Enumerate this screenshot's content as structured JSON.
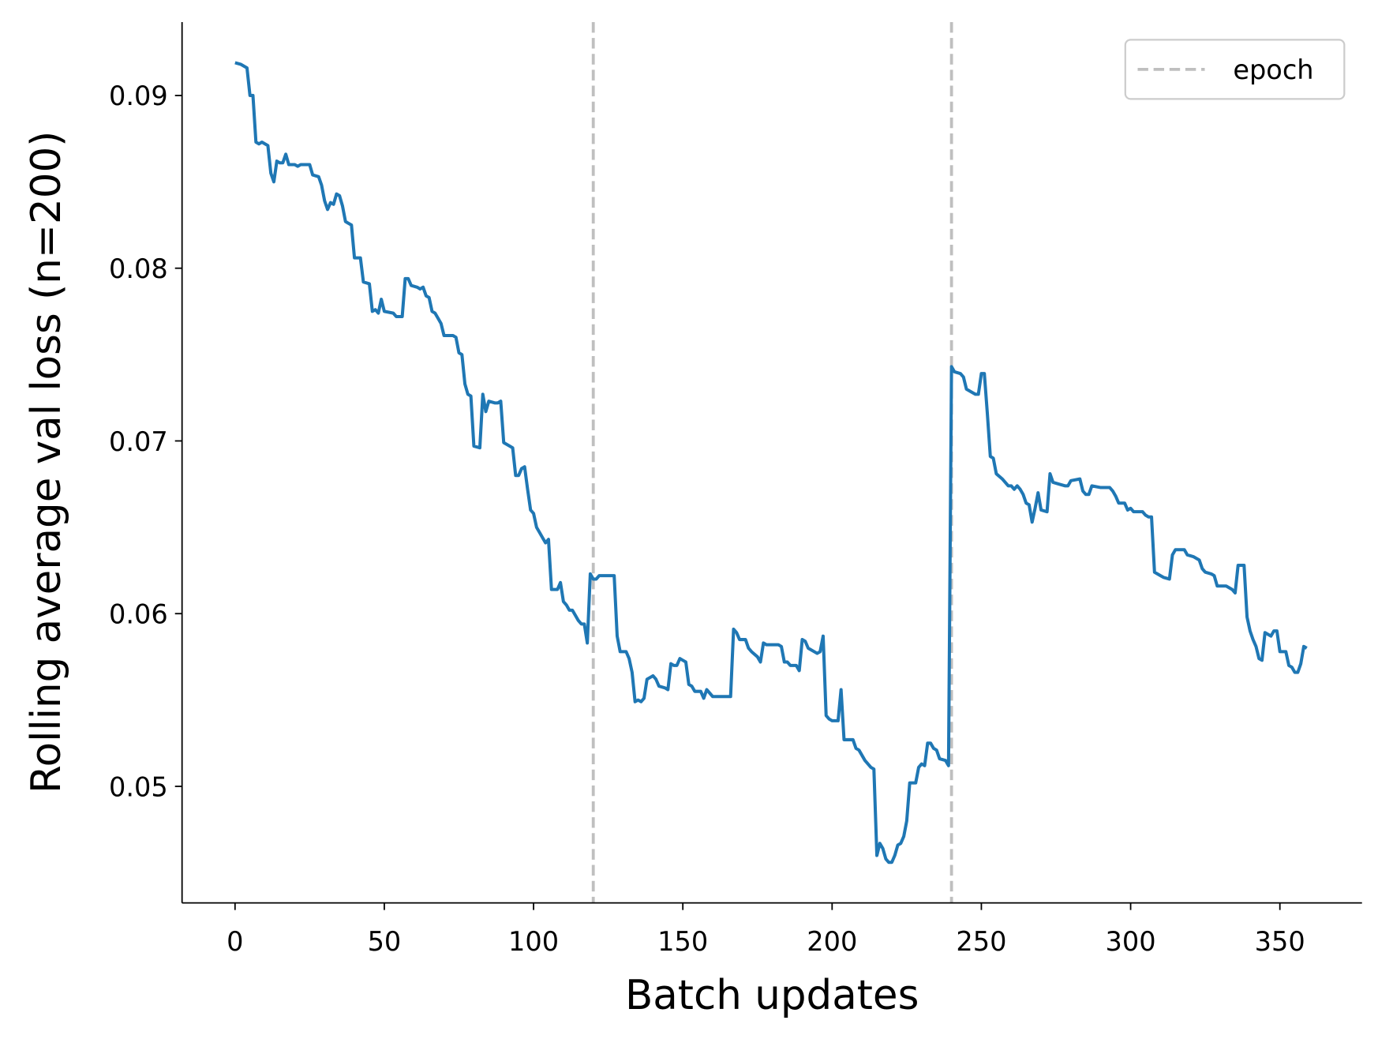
{
  "chart_data": {
    "type": "line",
    "xlabel": "Batch updates",
    "ylabel": "Rolling average val loss (n=200)",
    "color": "#1f77b4",
    "x": [
      0,
      2,
      4,
      5,
      6,
      7,
      8,
      9,
      11,
      12,
      13,
      14,
      15,
      16,
      17,
      18,
      20,
      21,
      22,
      25,
      26,
      28,
      29,
      30,
      31,
      32,
      33,
      34,
      35,
      36,
      37,
      38,
      39,
      40,
      42,
      43,
      45,
      46,
      47,
      48,
      49,
      50,
      53,
      54,
      56,
      57,
      58,
      59,
      61,
      62,
      63,
      64,
      65,
      66,
      67,
      68,
      69,
      70,
      73,
      74,
      75,
      76,
      77,
      78,
      79,
      80,
      82,
      83,
      84,
      85,
      87,
      88,
      89,
      90,
      92,
      93,
      94,
      95,
      96,
      97,
      98,
      99,
      100,
      101,
      102,
      103,
      104,
      105,
      106,
      108,
      109,
      110,
      111,
      112,
      113,
      114,
      115,
      116,
      117,
      118,
      119,
      120,
      121,
      122,
      127,
      128,
      129,
      131,
      132,
      133,
      134,
      135,
      136,
      137,
      138,
      139,
      140,
      141,
      142,
      144,
      145,
      146,
      147,
      148,
      149,
      150,
      151,
      152,
      153,
      154,
      155,
      156,
      157,
      158,
      159,
      160,
      166,
      167,
      168,
      169,
      171,
      172,
      173,
      175,
      176,
      177,
      178,
      180,
      182,
      183,
      184,
      185,
      186,
      188,
      189,
      190,
      191,
      192,
      195,
      196,
      197,
      198,
      199,
      200,
      202,
      203,
      204,
      207,
      208,
      209,
      211,
      213,
      214,
      215,
      216,
      217,
      218,
      219,
      220,
      221,
      222,
      223,
      224,
      225,
      226,
      228,
      229,
      230,
      231,
      232,
      233,
      234,
      235,
      236,
      238,
      239,
      240,
      241,
      243,
      244,
      245,
      247,
      248,
      249,
      250,
      251,
      252,
      253,
      254,
      255,
      257,
      258,
      259,
      260,
      261,
      262,
      263,
      264,
      265,
      266,
      267,
      268,
      269,
      270,
      272,
      273,
      274,
      276,
      278,
      279,
      280,
      283,
      284,
      285,
      286,
      287,
      290,
      293,
      294,
      295,
      296,
      298,
      299,
      300,
      301,
      304,
      305,
      306,
      307,
      308,
      310,
      311,
      313,
      314,
      315,
      318,
      319,
      321,
      323,
      324,
      325,
      327,
      328,
      329,
      332,
      334,
      335,
      336,
      338,
      339,
      340,
      341,
      342,
      343,
      344,
      345,
      347,
      348,
      349,
      350,
      352,
      353,
      354,
      355,
      356,
      357,
      358,
      359
    ],
    "values": [
      0.0919,
      0.0918,
      0.0916,
      0.09,
      0.09,
      0.0873,
      0.0872,
      0.0873,
      0.0871,
      0.0855,
      0.085,
      0.0862,
      0.0861,
      0.0861,
      0.0866,
      0.086,
      0.086,
      0.0859,
      0.086,
      0.086,
      0.0854,
      0.0853,
      0.0848,
      0.0839,
      0.0834,
      0.0838,
      0.0837,
      0.0843,
      0.0842,
      0.0836,
      0.0827,
      0.0826,
      0.0825,
      0.0806,
      0.0806,
      0.0792,
      0.0791,
      0.0775,
      0.0776,
      0.0774,
      0.0782,
      0.0775,
      0.0774,
      0.0772,
      0.0772,
      0.0794,
      0.0794,
      0.079,
      0.0789,
      0.0788,
      0.0789,
      0.0784,
      0.0783,
      0.0775,
      0.0774,
      0.0771,
      0.0768,
      0.0761,
      0.0761,
      0.076,
      0.0751,
      0.075,
      0.0733,
      0.0727,
      0.0726,
      0.0697,
      0.0696,
      0.0727,
      0.0717,
      0.0723,
      0.0722,
      0.0722,
      0.0723,
      0.0699,
      0.0697,
      0.0696,
      0.068,
      0.068,
      0.0684,
      0.0685,
      0.0672,
      0.066,
      0.0658,
      0.065,
      0.0647,
      0.0644,
      0.0641,
      0.0643,
      0.0614,
      0.0614,
      0.0618,
      0.0607,
      0.0605,
      0.0602,
      0.0602,
      0.0599,
      0.0596,
      0.0594,
      0.0594,
      0.0583,
      0.0623,
      0.062,
      0.062,
      0.0622,
      0.0622,
      0.0587,
      0.0578,
      0.0578,
      0.0574,
      0.0566,
      0.0549,
      0.055,
      0.0549,
      0.0551,
      0.0562,
      0.0563,
      0.0564,
      0.0562,
      0.0558,
      0.0557,
      0.0556,
      0.0571,
      0.057,
      0.057,
      0.0574,
      0.0573,
      0.0572,
      0.0559,
      0.0558,
      0.0555,
      0.0555,
      0.0555,
      0.0551,
      0.0556,
      0.0554,
      0.0552,
      0.0552,
      0.0591,
      0.0589,
      0.0585,
      0.0585,
      0.058,
      0.0578,
      0.0575,
      0.0572,
      0.0583,
      0.0582,
      0.0582,
      0.0582,
      0.0581,
      0.0572,
      0.0572,
      0.057,
      0.057,
      0.0567,
      0.0585,
      0.0584,
      0.058,
      0.0577,
      0.0578,
      0.0587,
      0.0541,
      0.0539,
      0.0538,
      0.0538,
      0.0556,
      0.0527,
      0.0527,
      0.0522,
      0.0521,
      0.0515,
      0.0511,
      0.051,
      0.046,
      0.0467,
      0.0464,
      0.0458,
      0.0456,
      0.0456,
      0.046,
      0.0466,
      0.0467,
      0.0471,
      0.048,
      0.0502,
      0.0502,
      0.0511,
      0.0513,
      0.0512,
      0.0525,
      0.0525,
      0.0522,
      0.0521,
      0.0516,
      0.0515,
      0.0512,
      0.0743,
      0.074,
      0.0739,
      0.0737,
      0.073,
      0.0728,
      0.0727,
      0.0727,
      0.0739,
      0.0739,
      0.0716,
      0.0691,
      0.069,
      0.0681,
      0.0678,
      0.0676,
      0.0674,
      0.0674,
      0.0672,
      0.0674,
      0.0672,
      0.0669,
      0.0664,
      0.0663,
      0.0653,
      0.0661,
      0.067,
      0.066,
      0.0659,
      0.0681,
      0.0676,
      0.0675,
      0.0674,
      0.0674,
      0.0677,
      0.0678,
      0.0671,
      0.0669,
      0.0669,
      0.0674,
      0.0673,
      0.0673,
      0.0671,
      0.0668,
      0.0664,
      0.0664,
      0.066,
      0.0661,
      0.0659,
      0.0659,
      0.0657,
      0.0656,
      0.0656,
      0.0624,
      0.0622,
      0.0621,
      0.062,
      0.0634,
      0.0637,
      0.0637,
      0.0634,
      0.0633,
      0.0631,
      0.0626,
      0.0624,
      0.0623,
      0.0622,
      0.0616,
      0.0616,
      0.0614,
      0.0612,
      0.0628,
      0.0628,
      0.0598,
      0.059,
      0.0585,
      0.0581,
      0.0574,
      0.0573,
      0.0589,
      0.0587,
      0.059,
      0.059,
      0.0578,
      0.0578,
      0.057,
      0.0569,
      0.0566,
      0.0566,
      0.0571,
      0.0581,
      0.058
    ],
    "vlines": {
      "name": "epoch",
      "color": "#bfbfbf",
      "x": [
        120,
        240
      ]
    },
    "legend": "upper right",
    "xlim": [
      -17.75,
      377.5
    ],
    "xticks": [
      0,
      50,
      100,
      150,
      200,
      250,
      300,
      350
    ],
    "ylim": [
      0.04325,
      0.09425
    ],
    "yticks": [
      0.05,
      0.06,
      0.07,
      0.08,
      0.09
    ]
  }
}
